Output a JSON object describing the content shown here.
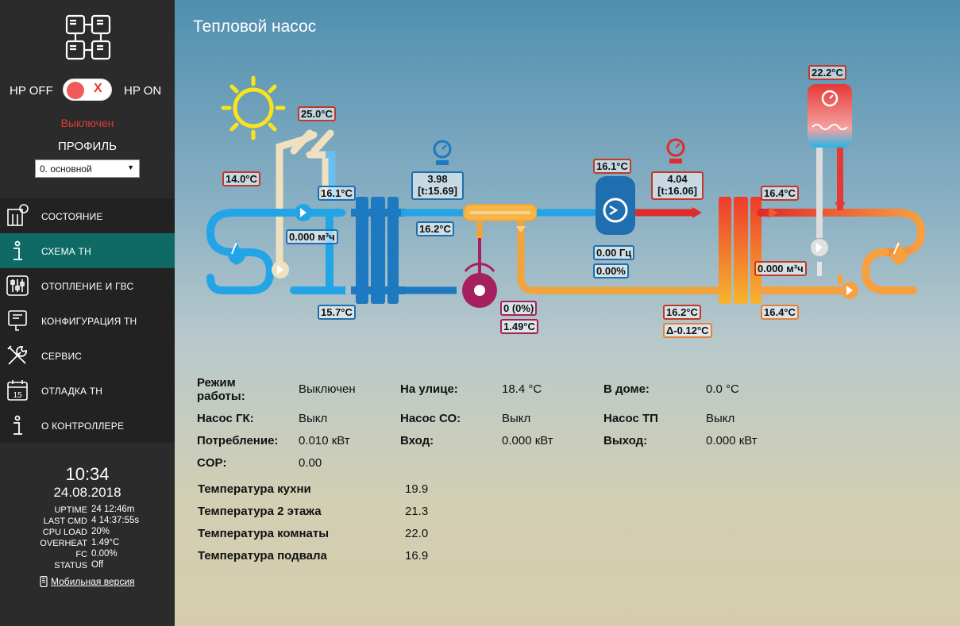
{
  "sidebar": {
    "hp_off": "HP OFF",
    "hp_on": "HP ON",
    "toggle_x": "X",
    "status": "Выключен",
    "profile_label": "ПРОФИЛЬ",
    "profile_value": "0. основной",
    "nav": [
      {
        "label": "СОСТОЯНИЕ",
        "icon": "thermometer-icon"
      },
      {
        "label": "СХЕМА ТН",
        "icon": "info-icon"
      },
      {
        "label": "ОТОПЛЕНИЕ И ГВС",
        "icon": "sliders-icon"
      },
      {
        "label": "КОНФИГУРАЦИЯ ТН",
        "icon": "config-icon"
      },
      {
        "label": "СЕРВИС",
        "icon": "tools-icon"
      },
      {
        "label": "ОТЛАДКА ТН",
        "icon": "calendar-icon"
      },
      {
        "label": "О КОНТРОЛЛЕРЕ",
        "icon": "info-icon"
      }
    ],
    "time": "10:34",
    "date": "24.08.2018",
    "stats": [
      {
        "k": "UPTIME",
        "v": "24 12:46m"
      },
      {
        "k": "LAST CMD",
        "v": "4 14:37:55s"
      },
      {
        "k": "CPU LOAD",
        "v": "20%"
      },
      {
        "k": "OVERHEAT",
        "v": "1.49°C"
      },
      {
        "k": "FC",
        "v": "0.00%"
      },
      {
        "k": "STATUS",
        "v": "Off"
      }
    ],
    "mobile_link": "Мобильная версия"
  },
  "main": {
    "title": "Тепловой насос",
    "scheme": {
      "solar_temp": "25.0°C",
      "left_loop_temp": "14.0°C",
      "source_supply_temp": "16.1°C",
      "source_flow": "0.000 м³ч",
      "source_return_temp": "15.7°C",
      "low_pressure": "3.98",
      "low_pressure_t": "[t:15.69]",
      "evap_temp": "16.2°C",
      "compressor_temp": "16.1°C",
      "freq": "0.00 Гц",
      "freq_pct": "0.00%",
      "high_pressure": "4.04",
      "high_pressure_t": "[t:16.06]",
      "valve_pos": "0 (0%)",
      "overheat": "1.49°C",
      "boiler_temp": "22.2°C",
      "condenser_out_temp": "16.4°C",
      "consumer_flow": "0.000 м³ч",
      "condenser_in_temp": "16.2°C",
      "delta": "Δ-0.12°C",
      "consumer_return_temp": "16.4°C"
    },
    "info": {
      "mode_k": "Режим",
      "mode_k2": "работы:",
      "mode_v": "Выключен",
      "outside_k": "На улице:",
      "outside_v": "18.4 °C",
      "home_k": "В доме:",
      "home_v": "0.0 °C",
      "pump_gk_k": "Насос ГК:",
      "pump_gk_v": "Выкл",
      "pump_co_k": "Насос СО:",
      "pump_co_v": "Выкл",
      "pump_tp_k": "Насос ТП",
      "pump_tp_v": "Выкл",
      "consumption_k": "Потребление:",
      "consumption_v": "0.010 кВт",
      "input_k": "Вход:",
      "input_v": "0.000 кВт",
      "output_k": "Выход:",
      "output_v": "0.000 кВт",
      "cop_k": "COP:",
      "cop_v": "0.00"
    },
    "rooms": [
      {
        "k": "Температура кухни",
        "v": "19.9"
      },
      {
        "k": "Температура 2 этажа",
        "v": "21.3"
      },
      {
        "k": "Температура комнаты",
        "v": "22.0"
      },
      {
        "k": "Температура подвала",
        "v": "16.9"
      }
    ]
  },
  "colors": {
    "accent": "#0f6a66",
    "cold": "#1e90d8",
    "hot": "#e53935",
    "warm": "#f5a040"
  }
}
